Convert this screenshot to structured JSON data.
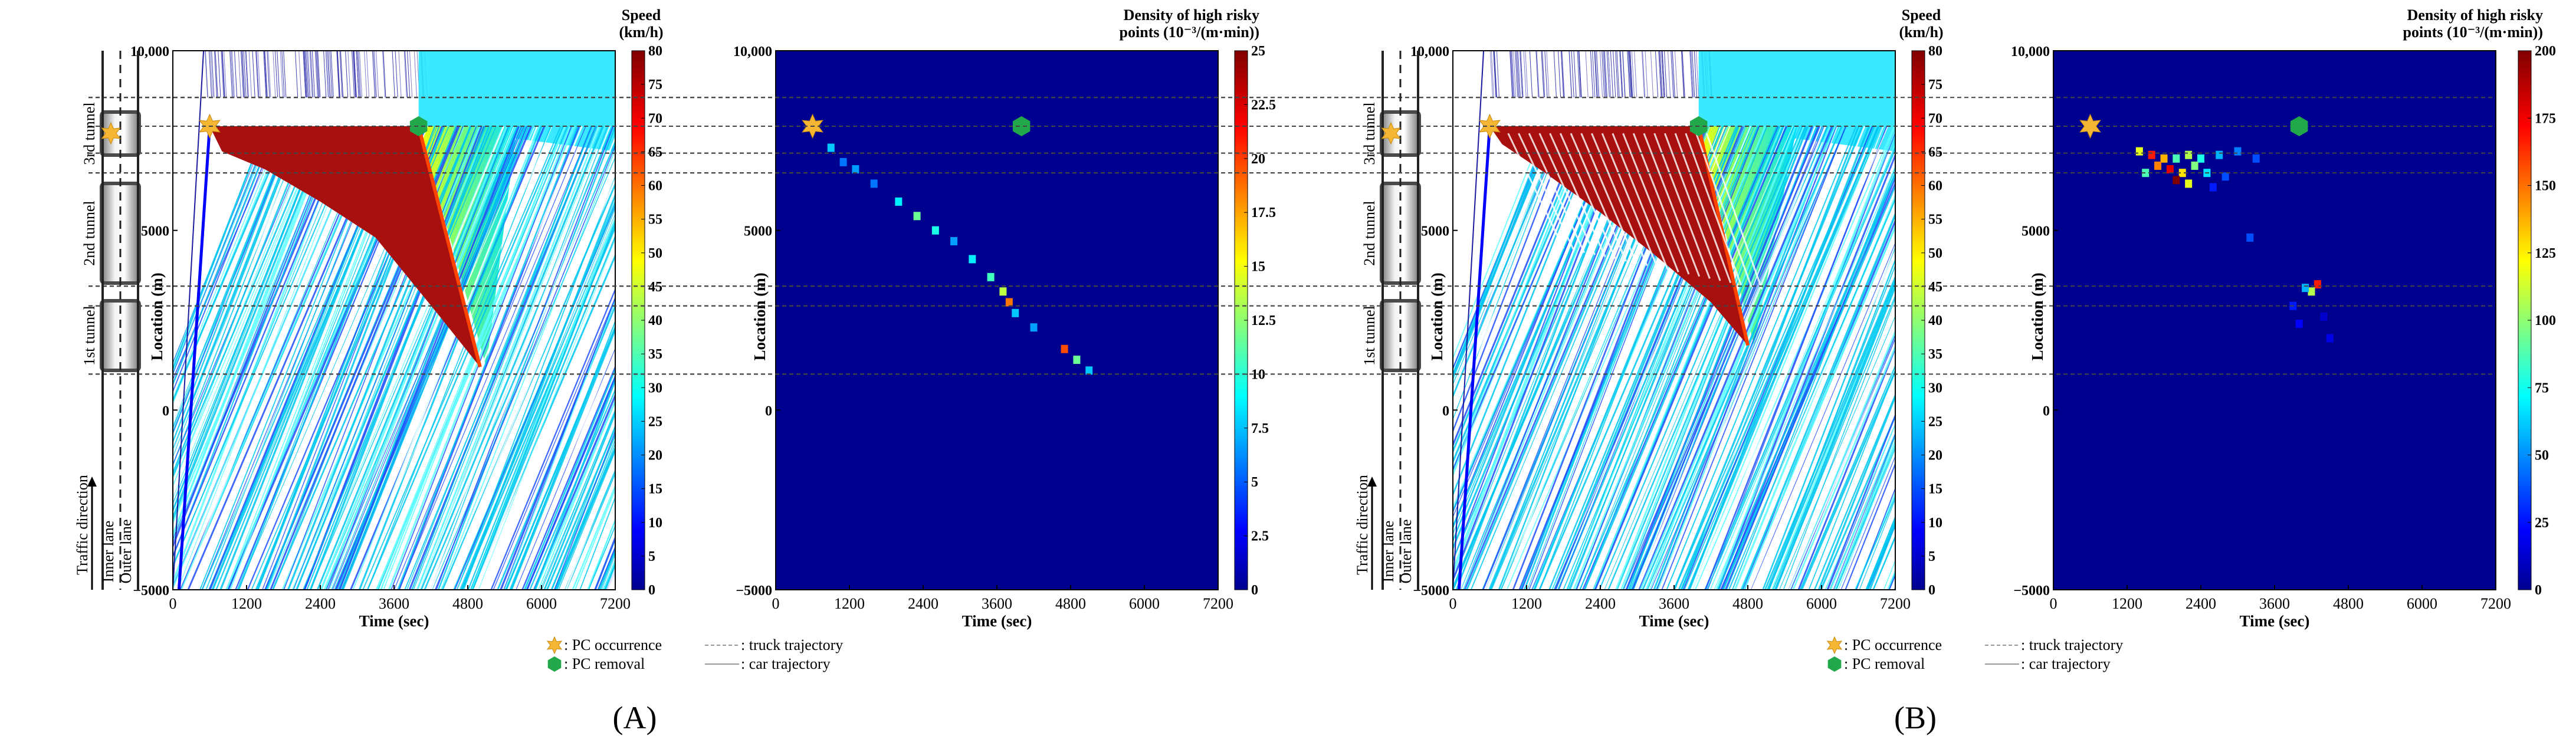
{
  "panel_labels": [
    "(A)",
    "(B)"
  ],
  "tunnel_labels": [
    "3rd tunnel",
    "2nd tunnel",
    "1st tunnel"
  ],
  "lane_labels": [
    "Inner lane",
    "Outer lane"
  ],
  "direction_label": "Traffic direction",
  "legend": {
    "pc_occurrence": ": PC occurrence",
    "pc_removal": ": PC removal",
    "truck": ": truck trajectory",
    "car": ": car trajectory"
  },
  "colors": {
    "pc_occurrence": "#f5b633",
    "pc_removal": "#21a84a",
    "density_bg": "#00008f",
    "queue": "#a81010"
  },
  "dashed_lines_location_m": [
    7150,
    7900,
    8700,
    6600,
    3450,
    2900,
    1000
  ],
  "chart_data": [
    {
      "type": "heatmap",
      "name": "A-speed",
      "xlabel": "Time (sec)",
      "ylabel": "Location (m)",
      "xlim": [
        0,
        7200
      ],
      "ylim": [
        -5000,
        10000
      ],
      "xticks": [
        0,
        1200,
        2400,
        3600,
        4800,
        6000,
        7200
      ],
      "yticks": [
        -5000,
        0,
        5000,
        10000
      ],
      "ytick_labels": [
        "−5000",
        "0",
        "5000",
        "10,000"
      ],
      "colorbar": {
        "title": "Speed (km/h)",
        "colormap": "jet",
        "range": [
          0,
          80
        ],
        "ticks": [
          0,
          5,
          10,
          15,
          20,
          25,
          30,
          35,
          40,
          45,
          50,
          55,
          60,
          65,
          70,
          75,
          80
        ]
      },
      "pc_occurrence": {
        "t": 600,
        "loc": 7900
      },
      "pc_removal": {
        "t": 4000,
        "loc": 7900
      },
      "queue_boundary": [
        [
          600,
          7900
        ],
        [
          800,
          7200
        ],
        [
          1500,
          6700
        ],
        [
          2400,
          5800
        ],
        [
          3300,
          4800
        ],
        [
          4300,
          2700
        ],
        [
          5000,
          1200
        ]
      ]
    },
    {
      "type": "heatmap",
      "name": "A-density",
      "xlabel": "Time (sec)",
      "ylabel": "Location (m)",
      "xlim": [
        0,
        7200
      ],
      "ylim": [
        -5000,
        10000
      ],
      "xticks": [
        0,
        1200,
        2400,
        3600,
        4800,
        6000,
        7200
      ],
      "yticks": [
        -5000,
        0,
        5000,
        10000
      ],
      "ytick_labels": [
        "−5000",
        "0",
        "5000",
        "10,000"
      ],
      "colorbar": {
        "title": "Density of high risky points (10⁻³/(m·min))",
        "colormap": "jet",
        "range": [
          0,
          25
        ],
        "ticks": [
          "0",
          "2.5",
          "5",
          "7.5",
          "10",
          "12.5",
          "15",
          "17.5",
          "20",
          "22.5",
          "25"
        ]
      },
      "pc_occurrence": {
        "t": 600,
        "loc": 7900
      },
      "pc_removal": {
        "t": 4000,
        "loc": 7900
      },
      "cells": [
        [
          900,
          7300,
          8
        ],
        [
          1100,
          6900,
          6
        ],
        [
          1300,
          6700,
          7
        ],
        [
          1600,
          6300,
          6
        ],
        [
          2000,
          5800,
          9
        ],
        [
          2300,
          5400,
          12
        ],
        [
          2600,
          5000,
          10
        ],
        [
          2900,
          4700,
          7
        ],
        [
          3200,
          4200,
          9
        ],
        [
          3500,
          3700,
          11
        ],
        [
          3700,
          3300,
          14
        ],
        [
          3800,
          3000,
          19
        ],
        [
          3900,
          2700,
          8
        ],
        [
          4200,
          2300,
          7
        ],
        [
          4700,
          1700,
          20
        ],
        [
          4900,
          1400,
          12
        ],
        [
          5100,
          1100,
          8
        ]
      ]
    },
    {
      "type": "heatmap",
      "name": "B-speed",
      "xlabel": "Time (sec)",
      "ylabel": "Location (m)",
      "xlim": [
        0,
        7200
      ],
      "ylim": [
        -5000,
        10000
      ],
      "xticks": [
        0,
        1200,
        2400,
        3600,
        4800,
        6000,
        7200
      ],
      "yticks": [
        -5000,
        0,
        5000,
        10000
      ],
      "ytick_labels": [
        "−5000",
        "0",
        "5000",
        "10,000"
      ],
      "colorbar": {
        "title": "Speed (km/h)",
        "colormap": "jet",
        "range": [
          0,
          80
        ],
        "ticks": [
          0,
          5,
          10,
          15,
          20,
          25,
          30,
          35,
          40,
          45,
          50,
          55,
          60,
          65,
          70,
          75,
          80
        ]
      },
      "pc_occurrence": {
        "t": 600,
        "loc": 7900
      },
      "pc_removal": {
        "t": 4000,
        "loc": 7900
      },
      "queue_boundary": [
        [
          600,
          7900
        ],
        [
          800,
          7400
        ],
        [
          1500,
          6600
        ],
        [
          2400,
          5500
        ],
        [
          3300,
          4300
        ],
        [
          4200,
          3000
        ],
        [
          4800,
          1800
        ]
      ]
    },
    {
      "type": "heatmap",
      "name": "B-density",
      "xlabel": "Time (sec)",
      "ylabel": "Location (m)",
      "xlim": [
        0,
        7200
      ],
      "ylim": [
        -5000,
        10000
      ],
      "xticks": [
        0,
        1200,
        2400,
        3600,
        4800,
        6000,
        7200
      ],
      "yticks": [
        -5000,
        0,
        5000,
        10000
      ],
      "ytick_labels": [
        "−5000",
        "0",
        "5000",
        "10,000"
      ],
      "colorbar": {
        "title": "Density of high risky points (10⁻³/(m·min))",
        "colormap": "jet",
        "range": [
          0,
          200
        ],
        "ticks": [
          0,
          25,
          50,
          75,
          100,
          125,
          150,
          175,
          200
        ]
      },
      "pc_occurrence": {
        "t": 600,
        "loc": 7900
      },
      "pc_removal": {
        "t": 4000,
        "loc": 7900
      },
      "cells": [
        [
          1400,
          7200,
          120
        ],
        [
          1600,
          7100,
          170
        ],
        [
          1800,
          7000,
          140
        ],
        [
          2000,
          7000,
          90
        ],
        [
          2200,
          7100,
          110
        ],
        [
          2400,
          7000,
          80
        ],
        [
          2700,
          7100,
          60
        ],
        [
          3000,
          7200,
          50
        ],
        [
          3300,
          7000,
          40
        ],
        [
          1700,
          6800,
          150
        ],
        [
          1900,
          6700,
          180
        ],
        [
          2100,
          6600,
          130
        ],
        [
          2300,
          6800,
          100
        ],
        [
          2500,
          6600,
          70
        ],
        [
          2000,
          6400,
          200
        ],
        [
          2200,
          6300,
          120
        ],
        [
          1500,
          6600,
          90
        ],
        [
          2800,
          6500,
          40
        ],
        [
          2600,
          6200,
          30
        ],
        [
          3200,
          4800,
          40
        ],
        [
          4300,
          3500,
          170
        ],
        [
          4200,
          3300,
          110
        ],
        [
          4100,
          3400,
          60
        ],
        [
          3900,
          2900,
          30
        ],
        [
          4000,
          2400,
          25
        ],
        [
          4500,
          2000,
          20
        ],
        [
          4400,
          2600,
          15
        ]
      ]
    }
  ]
}
